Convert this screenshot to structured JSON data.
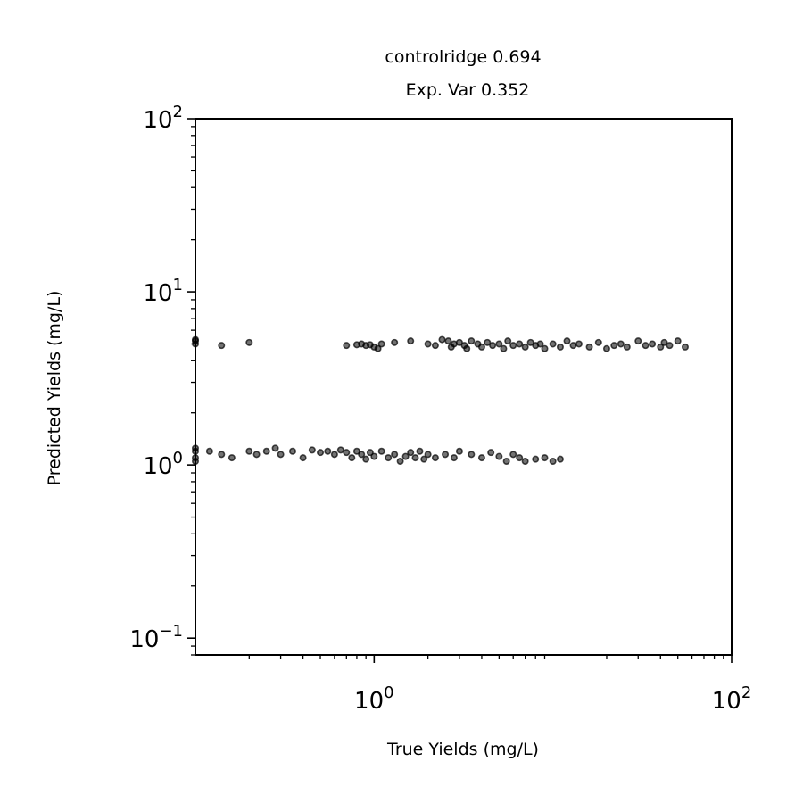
{
  "chart_data": {
    "type": "scatter",
    "title": "controlridge 0.694",
    "subtitle": "Exp. Var 0.352",
    "xlabel": "True Yields (mg/L)",
    "ylabel": "Predicted Yields (mg/L)",
    "xscale": "log",
    "yscale": "log",
    "xlim": [
      0.1,
      100
    ],
    "ylim": [
      0.08,
      100
    ],
    "x_ticks": [
      {
        "value": 1,
        "base": "10",
        "exp": "0"
      },
      {
        "value": 100,
        "base": "10",
        "exp": "2"
      }
    ],
    "y_ticks": [
      {
        "value": 0.1,
        "base": "10",
        "exp": "−1"
      },
      {
        "value": 1,
        "base": "10",
        "exp": "0"
      },
      {
        "value": 10,
        "base": "10",
        "exp": "1"
      },
      {
        "value": 100,
        "base": "10",
        "exp": "2"
      }
    ],
    "grid": false,
    "marker_color": "#000000",
    "marker_alpha": 0.55,
    "series": [
      {
        "points": [
          [
            0.1,
            5.2
          ],
          [
            0.1,
            5.0
          ],
          [
            0.1,
            5.3
          ],
          [
            0.14,
            4.9
          ],
          [
            0.2,
            5.1
          ],
          [
            0.7,
            4.9
          ],
          [
            0.8,
            4.95
          ],
          [
            0.85,
            5.0
          ],
          [
            0.9,
            4.9
          ],
          [
            0.95,
            4.95
          ],
          [
            1.0,
            4.8
          ],
          [
            1.05,
            4.7
          ],
          [
            1.1,
            5.0
          ],
          [
            1.3,
            5.1
          ],
          [
            1.6,
            5.2
          ],
          [
            2.0,
            5.0
          ],
          [
            2.2,
            4.9
          ],
          [
            2.4,
            5.3
          ],
          [
            2.6,
            5.2
          ],
          [
            2.7,
            4.8
          ],
          [
            2.8,
            5.0
          ],
          [
            3.0,
            5.1
          ],
          [
            3.2,
            4.9
          ],
          [
            3.3,
            4.7
          ],
          [
            3.5,
            5.2
          ],
          [
            3.8,
            5.0
          ],
          [
            4.0,
            4.8
          ],
          [
            4.3,
            5.1
          ],
          [
            4.6,
            4.9
          ],
          [
            5.0,
            5.0
          ],
          [
            5.3,
            4.7
          ],
          [
            5.6,
            5.2
          ],
          [
            6.0,
            4.9
          ],
          [
            6.5,
            5.0
          ],
          [
            7.0,
            4.8
          ],
          [
            7.5,
            5.1
          ],
          [
            8.0,
            4.9
          ],
          [
            8.5,
            5.0
          ],
          [
            9.0,
            4.7
          ],
          [
            10.0,
            5.0
          ],
          [
            11.0,
            4.8
          ],
          [
            12.0,
            5.2
          ],
          [
            13.0,
            4.9
          ],
          [
            14.0,
            5.0
          ],
          [
            16.0,
            4.8
          ],
          [
            18.0,
            5.1
          ],
          [
            20.0,
            4.7
          ],
          [
            22.0,
            4.9
          ],
          [
            24.0,
            5.0
          ],
          [
            26.0,
            4.8
          ],
          [
            30.0,
            5.2
          ],
          [
            33.0,
            4.9
          ],
          [
            36.0,
            5.0
          ],
          [
            40.0,
            4.8
          ],
          [
            42.0,
            5.1
          ],
          [
            45.0,
            4.9
          ],
          [
            50.0,
            5.2
          ],
          [
            55.0,
            4.8
          ],
          [
            0.1,
            1.2
          ],
          [
            0.1,
            1.1
          ],
          [
            0.1,
            1.25
          ],
          [
            0.1,
            1.05
          ],
          [
            0.12,
            1.2
          ],
          [
            0.14,
            1.15
          ],
          [
            0.16,
            1.1
          ],
          [
            0.2,
            1.2
          ],
          [
            0.22,
            1.15
          ],
          [
            0.25,
            1.2
          ],
          [
            0.28,
            1.25
          ],
          [
            0.3,
            1.15
          ],
          [
            0.35,
            1.2
          ],
          [
            0.4,
            1.1
          ],
          [
            0.45,
            1.22
          ],
          [
            0.5,
            1.18
          ],
          [
            0.55,
            1.2
          ],
          [
            0.6,
            1.15
          ],
          [
            0.65,
            1.22
          ],
          [
            0.7,
            1.18
          ],
          [
            0.75,
            1.1
          ],
          [
            0.8,
            1.2
          ],
          [
            0.85,
            1.15
          ],
          [
            0.9,
            1.08
          ],
          [
            0.95,
            1.18
          ],
          [
            1.0,
            1.12
          ],
          [
            1.1,
            1.2
          ],
          [
            1.2,
            1.1
          ],
          [
            1.3,
            1.15
          ],
          [
            1.4,
            1.05
          ],
          [
            1.5,
            1.12
          ],
          [
            1.6,
            1.18
          ],
          [
            1.7,
            1.1
          ],
          [
            1.8,
            1.2
          ],
          [
            1.9,
            1.08
          ],
          [
            2.0,
            1.15
          ],
          [
            2.2,
            1.1
          ],
          [
            2.5,
            1.15
          ],
          [
            2.8,
            1.1
          ],
          [
            3.0,
            1.2
          ],
          [
            3.5,
            1.15
          ],
          [
            4.0,
            1.1
          ],
          [
            4.5,
            1.18
          ],
          [
            5.0,
            1.12
          ],
          [
            5.5,
            1.05
          ],
          [
            6.0,
            1.15
          ],
          [
            6.5,
            1.1
          ],
          [
            7.0,
            1.05
          ],
          [
            8.0,
            1.08
          ],
          [
            9.0,
            1.1
          ],
          [
            10.0,
            1.05
          ],
          [
            11.0,
            1.08
          ]
        ]
      }
    ]
  }
}
